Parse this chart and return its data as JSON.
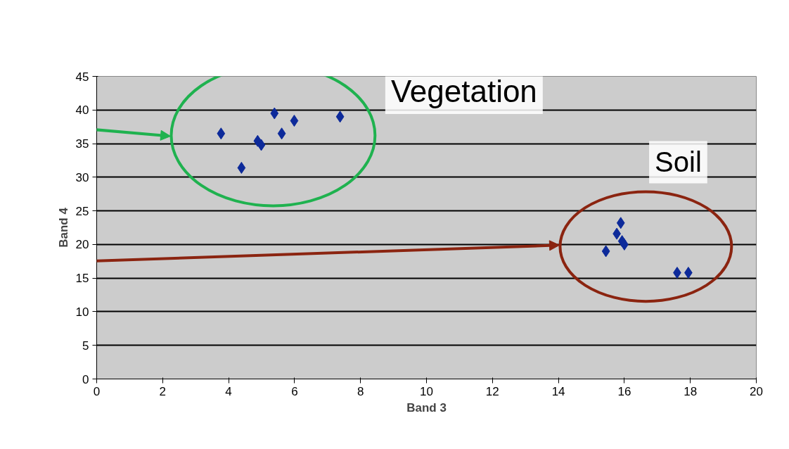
{
  "chart_data": {
    "type": "scatter",
    "xlabel": "Band 3",
    "ylabel": "Band 4",
    "x": [
      3.77,
      4.39,
      5.39,
      4.88,
      4.99,
      5.61,
      5.99,
      7.38,
      15.89,
      15.77,
      15.93,
      16.0,
      15.44,
      17.6,
      17.94
    ],
    "series": [
      {
        "color": "#0d2a9a",
        "values": [
          36.5,
          31.4,
          39.5,
          35.4,
          34.8,
          36.5,
          38.4,
          39.0,
          23.2,
          21.6,
          20.5,
          20.0,
          19.0,
          15.8,
          15.8
        ]
      }
    ],
    "xlim": [
      0,
      20
    ],
    "xticks": [
      0,
      2,
      4,
      6,
      8,
      10,
      12,
      14,
      16,
      18,
      20
    ],
    "ylim": [
      0,
      45
    ],
    "yticks": [
      0,
      5,
      10,
      15,
      20,
      25,
      30,
      35,
      40,
      45
    ],
    "grid": "y",
    "marker": "diamond",
    "annotations": [
      "Vegetation",
      "Soil"
    ]
  }
}
